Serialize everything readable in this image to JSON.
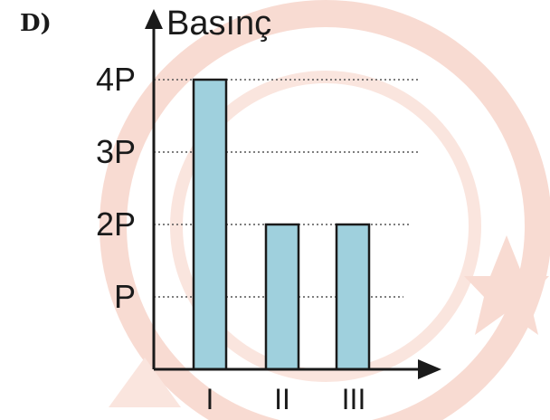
{
  "option_label": "D)",
  "chart_data": {
    "type": "bar",
    "ylabel": "Basınç",
    "xlabel": "",
    "categories": [
      "I",
      "II",
      "III"
    ],
    "values": [
      4,
      2,
      2
    ],
    "yticks": [
      {
        "value": 1,
        "label": "P"
      },
      {
        "value": 2,
        "label": "2P"
      },
      {
        "value": 3,
        "label": "3P"
      },
      {
        "value": 4,
        "label": "4P"
      }
    ],
    "ylim": [
      0,
      4
    ],
    "grid": "dotted horizontal",
    "bar_color": "#9fd0dd",
    "watermark_color": "#f6cfc3"
  }
}
